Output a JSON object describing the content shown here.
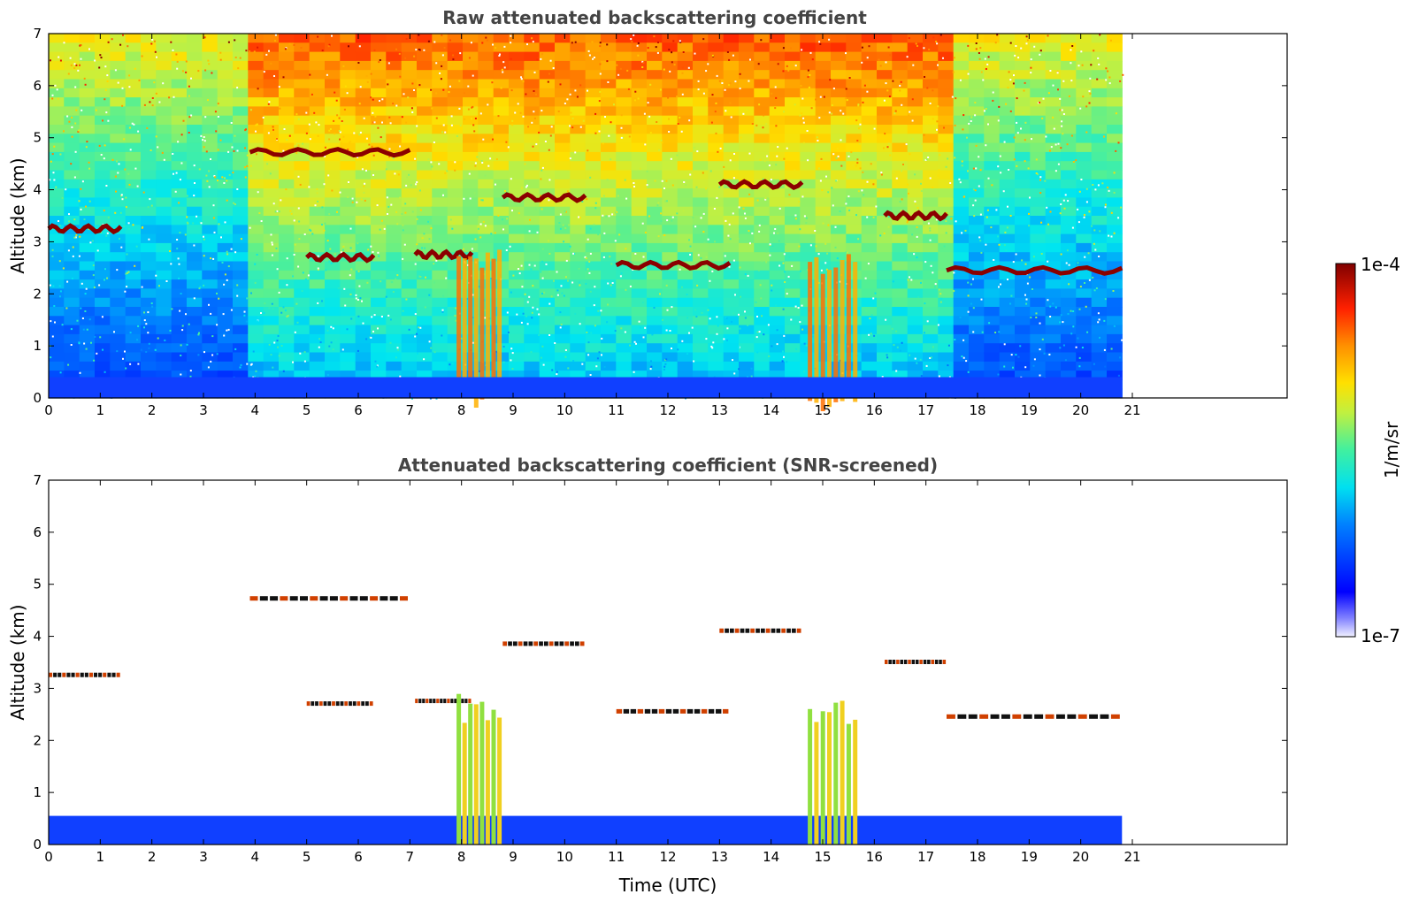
{
  "chart_data": [
    {
      "type": "heatmap",
      "title": "Raw attenuated backscattering coefficient",
      "xlabel": "",
      "ylabel": "Altitude (km)",
      "xlim": [
        0,
        24
      ],
      "ylim": [
        0,
        7
      ],
      "x_ticks": [
        0,
        1,
        2,
        3,
        4,
        5,
        6,
        7,
        8,
        9,
        10,
        11,
        12,
        13,
        14,
        15,
        16,
        17,
        18,
        19,
        20,
        21
      ],
      "y_ticks": [
        0,
        1,
        2,
        3,
        4,
        5,
        6,
        7
      ],
      "data_end_time": 20.8,
      "cloud_layers": [
        {
          "t_start": 0.0,
          "t_end": 1.4,
          "altitude": 3.25
        },
        {
          "t_start": 3.9,
          "t_end": 7.0,
          "altitude": 4.72
        },
        {
          "t_start": 5.0,
          "t_end": 6.3,
          "altitude": 2.7
        },
        {
          "t_start": 7.1,
          "t_end": 8.2,
          "altitude": 2.75
        },
        {
          "t_start": 8.8,
          "t_end": 10.4,
          "altitude": 3.85
        },
        {
          "t_start": 11.0,
          "t_end": 13.2,
          "altitude": 2.55
        },
        {
          "t_start": 13.0,
          "t_end": 14.6,
          "altitude": 4.1
        },
        {
          "t_start": 16.2,
          "t_end": 17.4,
          "altitude": 3.5
        },
        {
          "t_start": 17.4,
          "t_end": 20.8,
          "altitude": 2.45
        }
      ],
      "convective_plumes": [
        {
          "t_start": 7.9,
          "t_end": 8.8,
          "top_altitude": 2.9
        },
        {
          "t_start": 14.7,
          "t_end": 15.7,
          "top_altitude": 2.8
        }
      ]
    },
    {
      "type": "heatmap",
      "title": "Attenuated backscattering coefficient (SNR-screened)",
      "xlabel": "Time (UTC)",
      "ylabel": "Altitude (km)",
      "xlim": [
        0,
        24
      ],
      "ylim": [
        0,
        7
      ],
      "x_ticks": [
        0,
        1,
        2,
        3,
        4,
        5,
        6,
        7,
        8,
        9,
        10,
        11,
        12,
        13,
        14,
        15,
        16,
        17,
        18,
        19,
        20,
        21
      ],
      "y_ticks": [
        0,
        1,
        2,
        3,
        4,
        5,
        6,
        7
      ],
      "data_end_time": 20.8,
      "boundary_layer_top": 0.55
    }
  ],
  "colorbar": {
    "label": "1/m/sr",
    "min_label": "1e-7",
    "max_label": "1e-4",
    "colormap": "jet"
  }
}
